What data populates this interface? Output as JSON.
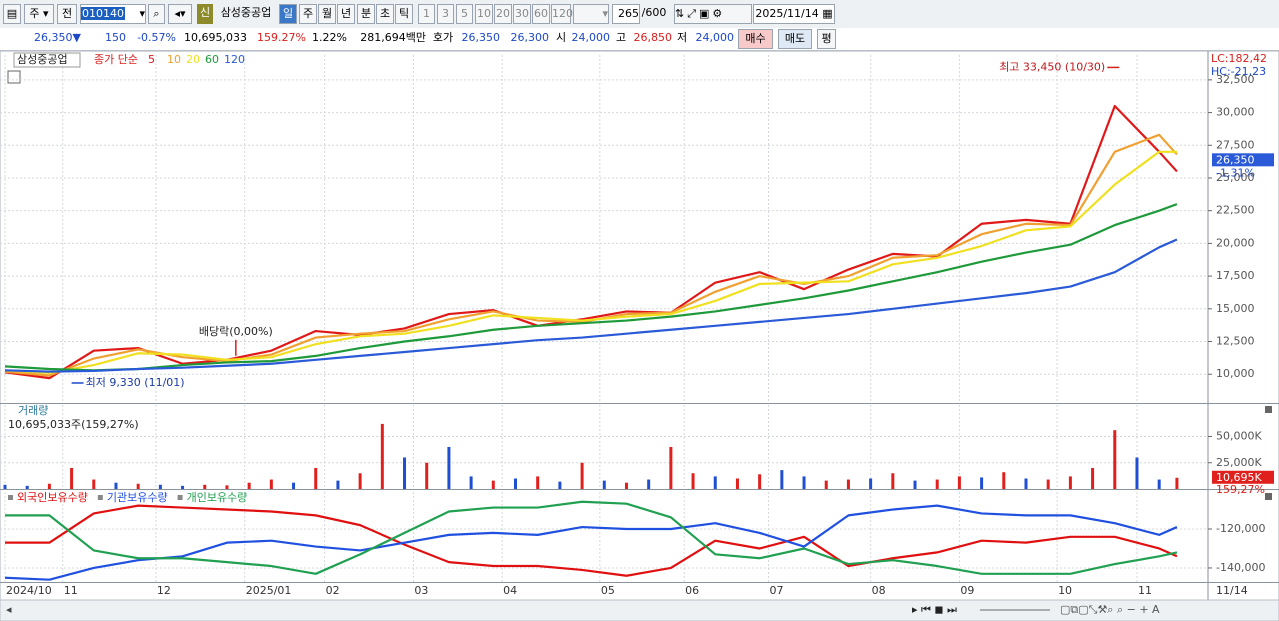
{
  "toolbar": {
    "items": [
      "주",
      "전",
      "010140",
      "삼성중공업",
      "신",
      "일",
      "주",
      "월",
      "년",
      "분",
      "초",
      "틱",
      "1",
      "3",
      "5",
      "10",
      "20",
      "30",
      "60",
      "120",
      "265",
      "/600",
      "2025/11/14"
    ]
  },
  "info_bar": {
    "items": [
      "26,350▼",
      "150",
      "-0.57%",
      "10,695,033",
      "159.27%",
      "1.22%",
      "281,694백만",
      "호가",
      "26,350",
      "26,300",
      "시",
      "24,000",
      "고",
      "26,850",
      "저",
      "24,000",
      "매수",
      "매도",
      "평"
    ]
  },
  "chart_data": [
    {
      "type": "line",
      "title": "삼성중공업",
      "subtitle": "종가 단순",
      "x": [
        0,
        10,
        20,
        30,
        40,
        50,
        60,
        70,
        80,
        90,
        100,
        110,
        120,
        130,
        140,
        150,
        160,
        170,
        180,
        190,
        200,
        210,
        220,
        230,
        240,
        250,
        260,
        264
      ],
      "series": [
        {
          "name": "5",
          "color": "#e01818",
          "values": [
            10150,
            9700,
            11800,
            12000,
            10800,
            11100,
            11800,
            13300,
            13000,
            13500,
            14600,
            14900,
            13700,
            14200,
            14800,
            14700,
            17000,
            17800,
            16500,
            18000,
            19200,
            19000,
            21500,
            21800,
            21500,
            30500,
            27000,
            25500
          ]
        },
        {
          "name": "10",
          "color": "#f0a030",
          "values": [
            10200,
            9900,
            11200,
            11900,
            11300,
            11000,
            11500,
            12800,
            13100,
            13300,
            14200,
            14800,
            14100,
            14000,
            14600,
            14700,
            16300,
            17500,
            16900,
            17500,
            18900,
            19100,
            20700,
            21500,
            21400,
            27000,
            28300,
            26800
          ]
        },
        {
          "name": "20",
          "color": "#f0e020",
          "values": [
            10300,
            10100,
            10700,
            11600,
            11500,
            11100,
            11300,
            12300,
            12900,
            13100,
            13700,
            14500,
            14300,
            14100,
            14400,
            14600,
            15600,
            16900,
            17000,
            17100,
            18400,
            18900,
            19800,
            21000,
            21300,
            24500,
            27000,
            27000
          ]
        },
        {
          "name": "60",
          "color": "#1e9a3a",
          "values": [
            10600,
            10400,
            10300,
            10400,
            10700,
            10900,
            11000,
            11400,
            12000,
            12500,
            12900,
            13400,
            13700,
            13900,
            14100,
            14400,
            14800,
            15300,
            15800,
            16400,
            17100,
            17800,
            18600,
            19300,
            19900,
            21400,
            22500,
            23000
          ]
        },
        {
          "name": "120",
          "color": "#2a5ad8",
          "values": [
            10300,
            10200,
            10250,
            10400,
            10500,
            10650,
            10800,
            11100,
            11400,
            11700,
            12000,
            12300,
            12600,
            12800,
            13100,
            13400,
            13700,
            14000,
            14300,
            14600,
            15000,
            15400,
            15800,
            16200,
            16700,
            17800,
            19700,
            20300
          ]
        }
      ],
      "xlim": [
        0,
        271
      ],
      "xticks": [
        {
          "value": 0,
          "label": "2024/10"
        },
        {
          "value": 13,
          "label": "11"
        },
        {
          "value": 34,
          "label": "12"
        },
        {
          "value": 54,
          "label": "2025/01"
        },
        {
          "value": 72,
          "label": "02"
        },
        {
          "value": 92,
          "label": "03"
        },
        {
          "value": 112,
          "label": "04"
        },
        {
          "value": 134,
          "label": "05"
        },
        {
          "value": 153,
          "label": "06"
        },
        {
          "value": 172,
          "label": "07"
        },
        {
          "value": 195,
          "label": "08"
        },
        {
          "value": 215,
          "label": "09"
        },
        {
          "value": 237,
          "label": "10"
        },
        {
          "value": 255,
          "label": "11"
        }
      ],
      "x_end_label": "11/14",
      "ylim": [
        7800,
        34400
      ],
      "yticks": [
        {
          "value": 10000,
          "label": "10,000"
        },
        {
          "value": 12500,
          "label": "12,500"
        },
        {
          "value": 15000,
          "label": "15,000"
        },
        {
          "value": 17500,
          "label": "17,500"
        },
        {
          "value": 20000,
          "label": "20,000"
        },
        {
          "value": 22500,
          "label": "22,500"
        },
        {
          "value": 25000,
          "label": "25,000"
        },
        {
          "value": 27500,
          "label": "27,500"
        },
        {
          "value": 30000,
          "label": "30,000"
        },
        {
          "value": 32500,
          "label": "32,500"
        }
      ],
      "grid": true,
      "annotations": [
        {
          "text": "최고 33,450 (10/30)",
          "x": 251,
          "y": 33450
        },
        {
          "text": "최저 9,330 (11/01)",
          "x": 15,
          "y": 9330
        },
        {
          "text": "배당락(0,00%)",
          "x": 52,
          "y": 11100
        }
      ],
      "indicators": [
        "LC:182,42",
        "HC:-21,23"
      ],
      "last_price": {
        "value": 26350,
        "label": "26,350"
      },
      "change_label": "-1,31%"
    },
    {
      "type": "bar",
      "title": "거래량",
      "subtitle": "10,695,033주(159,27%)",
      "x": [
        0,
        5,
        10,
        15,
        20,
        25,
        30,
        35,
        40,
        45,
        50,
        55,
        60,
        65,
        70,
        75,
        80,
        85,
        90,
        95,
        100,
        105,
        110,
        115,
        120,
        125,
        130,
        135,
        140,
        145,
        150,
        155,
        160,
        165,
        170,
        175,
        180,
        185,
        190,
        195,
        200,
        205,
        210,
        215,
        220,
        225,
        230,
        235,
        240,
        245,
        250,
        255,
        260,
        264
      ],
      "values": [
        4000,
        3000,
        5000,
        20000,
        9000,
        6000,
        5000,
        4000,
        3000,
        4000,
        3500,
        6000,
        9000,
        6000,
        20000,
        8000,
        15000,
        62000,
        30000,
        25000,
        40000,
        12000,
        8000,
        10000,
        12000,
        7000,
        25000,
        8000,
        6000,
        9000,
        40000,
        15000,
        12000,
        10000,
        14000,
        18000,
        12000,
        8000,
        9000,
        10000,
        15000,
        8000,
        9000,
        12000,
        11000,
        16000,
        10000,
        9000,
        12000,
        20000,
        56000,
        30000,
        9000,
        10695
      ],
      "colors": [
        "#1f4fd0",
        "#1f4fd0",
        "#e0201c",
        "#e0201c",
        "#e0201c",
        "#1f4fd0",
        "#e0201c",
        "#1f4fd0",
        "#1f4fd0",
        "#e0201c",
        "#e0201c",
        "#e0201c",
        "#e0201c",
        "#1f4fd0",
        "#e0201c",
        "#1f4fd0",
        "#e0201c",
        "#e0201c",
        "#1f4fd0",
        "#e0201c",
        "#1f4fd0",
        "#1f4fd0",
        "#e0201c",
        "#1f4fd0",
        "#e0201c",
        "#1f4fd0",
        "#e0201c",
        "#1f4fd0",
        "#e0201c",
        "#1f4fd0",
        "#e0201c",
        "#e0201c",
        "#1f4fd0",
        "#e0201c",
        "#e0201c",
        "#1f4fd0",
        "#1f4fd0",
        "#e0201c",
        "#e0201c",
        "#1f4fd0",
        "#e0201c",
        "#1f4fd0",
        "#e0201c",
        "#e0201c",
        "#1f4fd0",
        "#e0201c",
        "#1f4fd0",
        "#e0201c",
        "#e0201c",
        "#e0201c",
        "#e0201c",
        "#1f4fd0",
        "#1f4fd0",
        "#e0201c"
      ],
      "ylim": [
        0,
        80000
      ],
      "yticks": [
        {
          "value": 25000,
          "label": "25,000K"
        },
        {
          "value": 50000,
          "label": "50,000K"
        }
      ],
      "last_value": {
        "value": 10695,
        "label": "10,695K"
      },
      "last_ratio": "159,27%"
    },
    {
      "type": "line",
      "x": [
        0,
        10,
        20,
        30,
        40,
        50,
        60,
        70,
        80,
        90,
        100,
        110,
        120,
        130,
        140,
        150,
        160,
        170,
        180,
        190,
        200,
        210,
        220,
        230,
        240,
        250,
        260,
        264
      ],
      "series": [
        {
          "name": "외국인보유수량",
          "color": "#e01010",
          "values": [
            -127000,
            -127000,
            -112000,
            -108000,
            -109000,
            -110000,
            -111000,
            -113000,
            -118000,
            -128000,
            -137000,
            -139000,
            -139000,
            -141000,
            -144000,
            -140000,
            -126000,
            -130000,
            -124000,
            -139000,
            -135000,
            -132000,
            -126000,
            -127000,
            -124000,
            -124000,
            -130000,
            -134000
          ]
        },
        {
          "name": "기관보유수량",
          "color": "#2050e0",
          "values": [
            -145000,
            -146000,
            -140000,
            -136000,
            -134000,
            -127000,
            -126000,
            -129000,
            -131000,
            -127000,
            -123000,
            -122000,
            -123000,
            -119000,
            -120000,
            -120000,
            -117000,
            -122000,
            -129000,
            -113000,
            -110000,
            -108000,
            -112000,
            -113000,
            -113000,
            -117000,
            -123000,
            -119000
          ]
        },
        {
          "name": "개인보유수량",
          "color": "#20a050",
          "values": [
            -113000,
            -113000,
            -131000,
            -135000,
            -135000,
            -137000,
            -139000,
            -143000,
            -133000,
            -122000,
            -111000,
            -109000,
            -109000,
            -106000,
            -107000,
            -114000,
            -133000,
            -135000,
            -130000,
            -138000,
            -136000,
            -139000,
            -143000,
            -143000,
            -143000,
            -138000,
            -134000,
            -132000
          ]
        }
      ],
      "ylim": [
        -147200,
        -101000
      ],
      "yticks": [
        {
          "value": -120000,
          "label": "-120,000"
        },
        {
          "value": -140000,
          "label": "-140,000"
        }
      ]
    }
  ]
}
